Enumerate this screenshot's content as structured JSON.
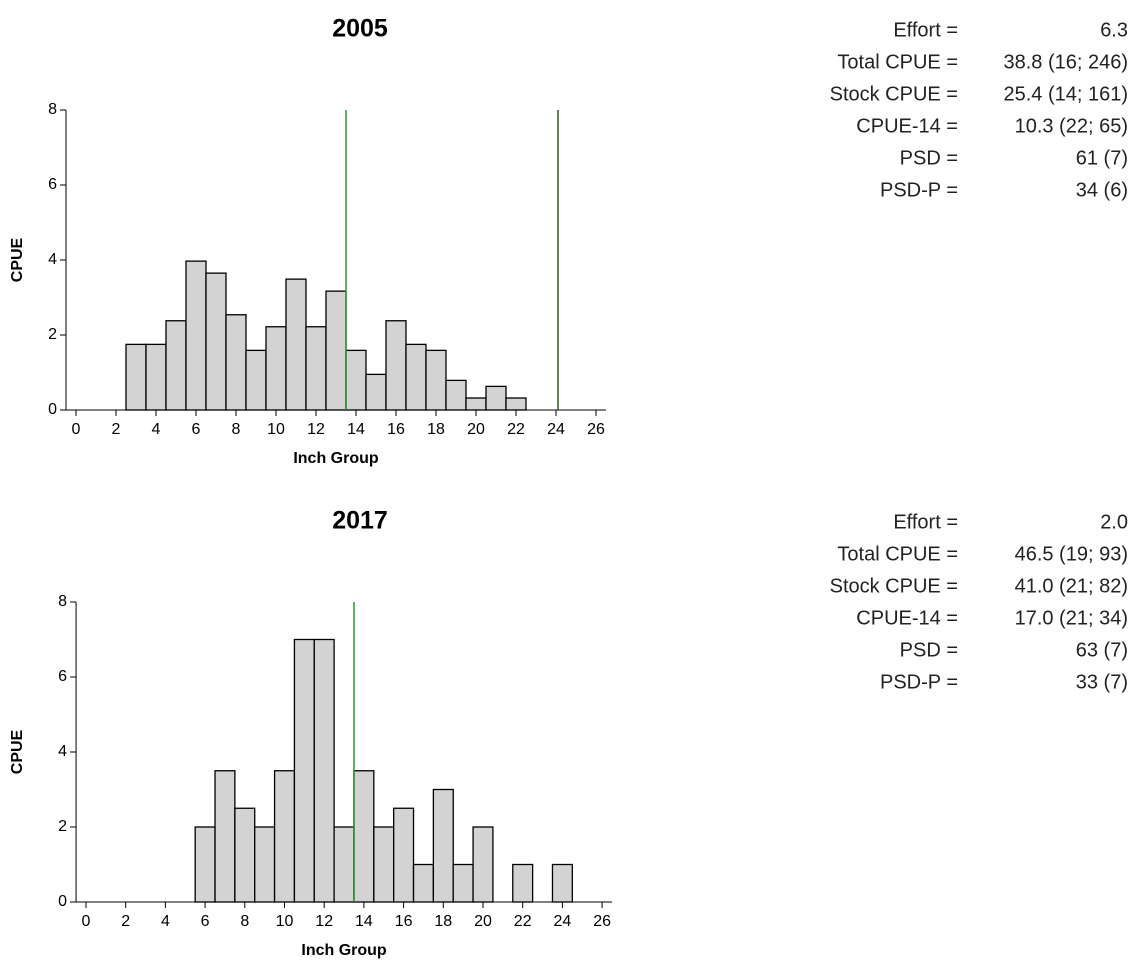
{
  "chart_data": [
    {
      "type": "bar",
      "title": "2005",
      "xlabel": "Inch Group",
      "ylabel": "CPUE",
      "x": [
        3,
        4,
        5,
        6,
        7,
        8,
        9,
        10,
        11,
        12,
        13,
        14,
        15,
        16,
        17,
        18,
        19,
        20,
        21,
        22
      ],
      "values": [
        1.75,
        1.75,
        2.38,
        3.97,
        3.65,
        2.54,
        1.59,
        2.22,
        3.49,
        2.22,
        3.17,
        1.59,
        0.95,
        2.38,
        1.75,
        1.59,
        0.79,
        0.32,
        0.63,
        0.32
      ],
      "color": "#d3d3d3",
      "xlim": [
        -0.5,
        26.5
      ],
      "xticks": [
        0,
        2,
        4,
        6,
        8,
        10,
        12,
        14,
        16,
        18,
        20,
        22,
        24,
        26
      ],
      "ylim": [
        0,
        8
      ],
      "yticks": [
        0,
        2,
        4,
        6,
        8
      ],
      "reference_lines": [
        {
          "x": 13.5,
          "color": "#2e9b2e"
        },
        {
          "x": 24.1,
          "color": "#2f5a1e"
        }
      ],
      "stats": [
        {
          "label": "Effort =",
          "value": "6.3"
        },
        {
          "label": "Total CPUE =",
          "value": "38.8 (16; 246)"
        },
        {
          "label": "Stock CPUE =",
          "value": "25.4 (14; 161)"
        },
        {
          "label": "CPUE-14 =",
          "value": "10.3 (22; 65)"
        },
        {
          "label": "PSD =",
          "value": "61 (7)"
        },
        {
          "label": "PSD-P =",
          "value": "34 (6)"
        }
      ]
    },
    {
      "type": "bar",
      "title": "2017",
      "xlabel": "Inch Group",
      "ylabel": "CPUE",
      "x": [
        6,
        7,
        8,
        9,
        10,
        11,
        12,
        13,
        14,
        15,
        16,
        17,
        18,
        19,
        20,
        22,
        24
      ],
      "values": [
        2,
        3.5,
        2.5,
        2,
        3.5,
        7,
        7,
        2,
        3.5,
        2,
        2.5,
        1,
        3,
        1,
        2,
        1,
        1
      ],
      "color": "#d3d3d3",
      "xlim": [
        -0.5,
        26.5
      ],
      "xticks": [
        0,
        2,
        4,
        6,
        8,
        10,
        12,
        14,
        16,
        18,
        20,
        22,
        24,
        26
      ],
      "ylim": [
        0,
        8
      ],
      "yticks": [
        0,
        2,
        4,
        6,
        8
      ],
      "reference_lines": [
        {
          "x": 13.5,
          "color": "#2e9b2e"
        }
      ],
      "stats": [
        {
          "label": "Effort =",
          "value": "2.0"
        },
        {
          "label": "Total CPUE =",
          "value": "46.5 (19; 93)"
        },
        {
          "label": "Stock CPUE =",
          "value": "41.0 (21; 82)"
        },
        {
          "label": "CPUE-14 =",
          "value": "17.0 (21; 34)"
        },
        {
          "label": "PSD =",
          "value": "63 (7)"
        },
        {
          "label": "PSD-P =",
          "value": "33 (7)"
        }
      ]
    }
  ]
}
